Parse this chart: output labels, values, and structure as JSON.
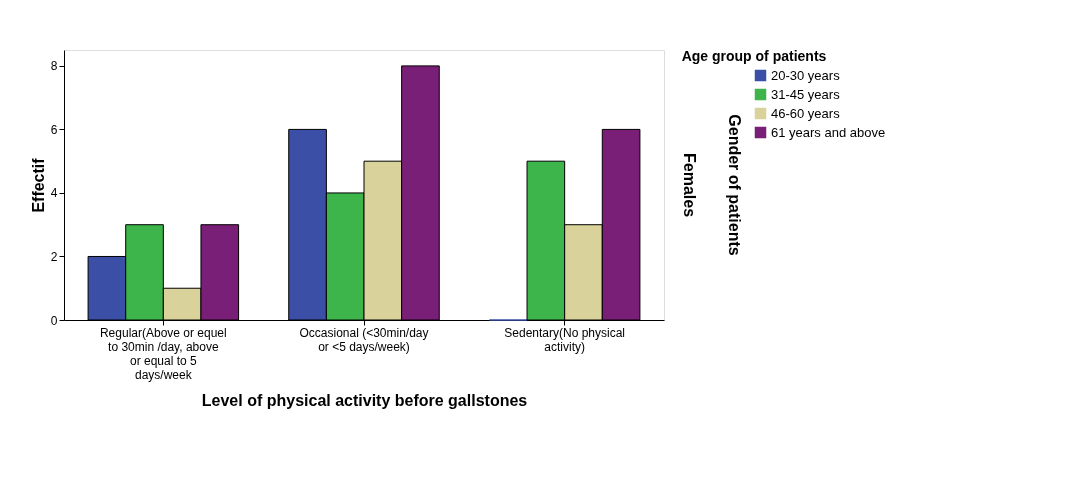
{
  "chart_data": {
    "type": "bar",
    "xlabel": "Level of physical activity before gallstones",
    "ylabel": "Effectif",
    "y2label": "Gender of patients",
    "legend_title": "Age group of patients",
    "categories": [
      "Regular(Above or equel to 30min /day, above or equal to 5 days/week",
      "Occasional (<30min/day or <5 days/week)",
      "Sedentary(No physical activity)"
    ],
    "series": [
      {
        "name": "20-30 years",
        "color": "#3a4fa5",
        "values": [
          2,
          6,
          0
        ]
      },
      {
        "name": "31-45 years",
        "color": "#3db54a",
        "values": [
          3,
          4,
          5
        ]
      },
      {
        "name": "46-60 years",
        "color": "#d9d29a",
        "values": [
          1,
          5,
          3
        ]
      },
      {
        "name": "61 years and above",
        "color": "#7a1f77",
        "values": [
          3,
          8,
          6
        ]
      }
    ],
    "annotations": [
      "Females"
    ],
    "ylim": [
      0,
      8.5
    ],
    "yticks": [
      0,
      2,
      4,
      6,
      8
    ],
    "grid": false,
    "legend": "top right"
  }
}
